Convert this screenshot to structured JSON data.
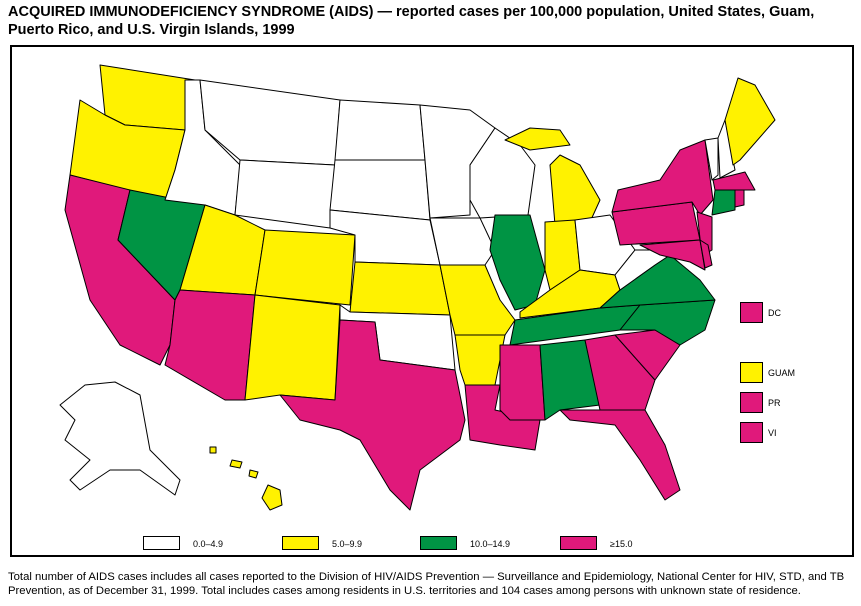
{
  "title": "ACQUIRED IMMUNODEFICIENCY SYNDROME (AIDS) — reported cases per 100,000 population, United States, Guam, Puerto Rico, and U.S. Virgin Islands, 1999",
  "colors": {
    "c0": "#FFFFFF",
    "c1": "#FFF200",
    "c2": "#009444",
    "c3": "#E0197B"
  },
  "legend": [
    {
      "label": "0.0–4.9",
      "cls": "c0"
    },
    {
      "label": "5.0–9.9",
      "cls": "c1"
    },
    {
      "label": "10.0–14.9",
      "cls": "c2"
    },
    {
      "label": "≥15.0",
      "cls": "c3"
    }
  ],
  "territories": [
    {
      "label": "DC",
      "cls": "c3"
    },
    {
      "label": "GUAM",
      "cls": "c1"
    },
    {
      "label": "PR",
      "cls": "c3"
    },
    {
      "label": "VI",
      "cls": "c3"
    }
  ],
  "states": {
    "WA": "c1",
    "OR": "c1",
    "CA": "c3",
    "NV": "c2",
    "ID": "c0",
    "MT": "c0",
    "WY": "c0",
    "UT": "c1",
    "CO": "c1",
    "AZ": "c3",
    "NM": "c1",
    "ND": "c0",
    "SD": "c0",
    "NE": "c0",
    "KS": "c1",
    "OK": "c0",
    "TX": "c3",
    "MN": "c0",
    "IA": "c0",
    "MO": "c1",
    "AR": "c1",
    "LA": "c3",
    "WI": "c0",
    "IL": "c2",
    "MI": "c1",
    "IN": "c1",
    "OH": "c0",
    "KY": "c1",
    "TN": "c2",
    "MS": "c3",
    "AL": "c2",
    "GA": "c3",
    "FL": "c3",
    "SC": "c3",
    "NC": "c2",
    "VA": "c2",
    "WV": "c0",
    "PA": "c3",
    "NY": "c3",
    "NJ": "c3",
    "MD": "c3",
    "DE": "c3",
    "VT": "c0",
    "NH": "c0",
    "ME": "c1",
    "MA": "c3",
    "CT": "c2",
    "RI": "c3",
    "AK": "c0",
    "HI": "c1"
  },
  "footnote": "Total number of AIDS cases includes all cases reported to the Division of HIV/AIDS Prevention — Surveillance and Epidemiology, National Center for HIV, STD, and TB Prevention, as of December 31, 1999. Total includes cases among residents in U.S. territories and 104 cases among persons with unknown state of residence."
}
